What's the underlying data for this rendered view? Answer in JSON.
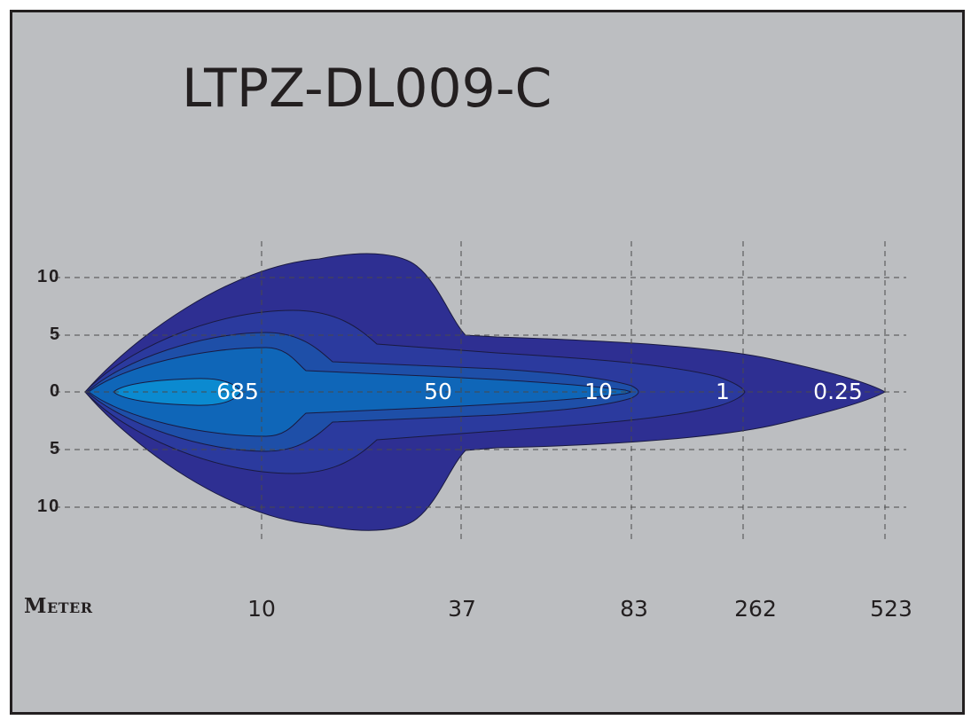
{
  "title": "LTPZ-DL009-C",
  "y_axis": {
    "ticks": [
      "10",
      "5",
      "0",
      "5",
      "10"
    ]
  },
  "x_axis": {
    "unit_label": "Meter",
    "ticks": [
      "10",
      "37",
      "83",
      "262",
      "523"
    ]
  },
  "isolux_labels": [
    "685",
    "50",
    "10",
    "1",
    "0.25"
  ],
  "colors": {
    "background": "#bcbec1",
    "zone_0_25": "#2e2f92",
    "zone_1": "#2b3a9e",
    "zone_10": "#1e4fa8",
    "zone_50": "#0f66b8",
    "zone_685": "#0b8ad0",
    "grid": "#4a4a4a"
  }
}
